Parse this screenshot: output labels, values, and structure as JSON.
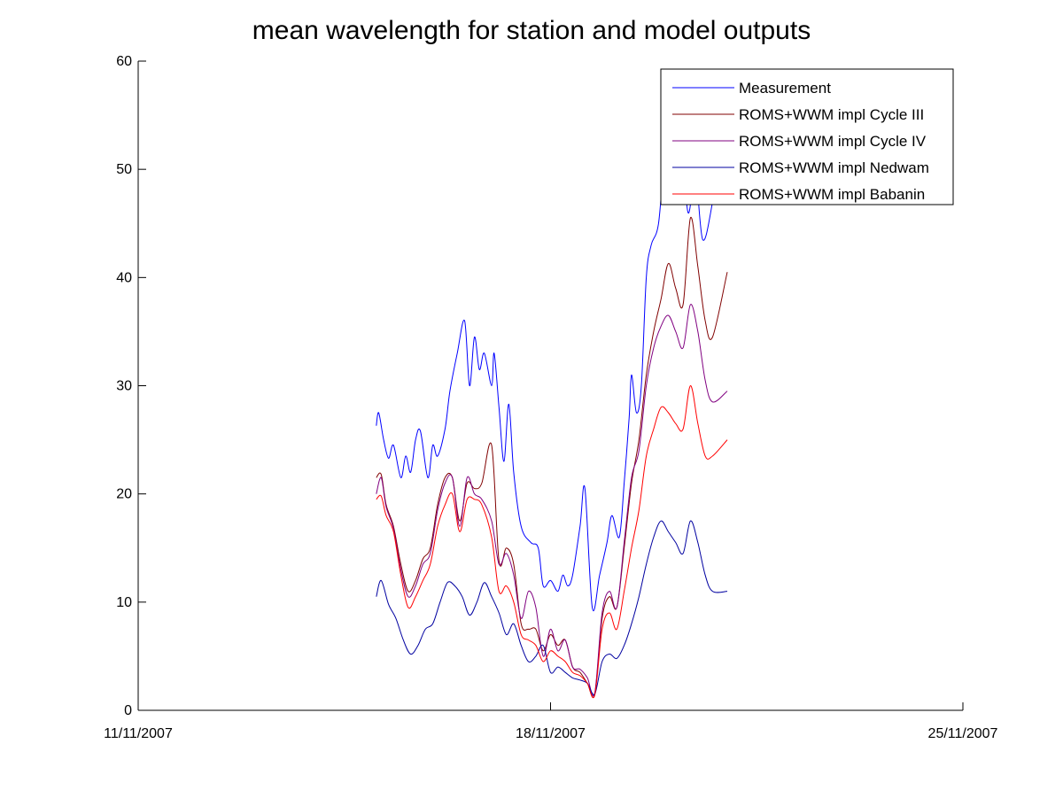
{
  "chart_data": {
    "type": "line",
    "title": "mean wavelength for station and model outputs",
    "xlabel": "",
    "ylabel": "",
    "x_axis": {
      "type": "date",
      "range": [
        "2007-11-11",
        "2007-11-25"
      ],
      "ticks": [
        {
          "date": "2007-11-11",
          "label": "11/11/2007"
        },
        {
          "date": "2007-11-18",
          "label": "18/11/2007"
        },
        {
          "date": "2007-11-25",
          "label": "25/11/2007"
        }
      ]
    },
    "y_axis": {
      "range": [
        0,
        60
      ],
      "ticks": [
        0,
        10,
        20,
        30,
        40,
        50,
        60
      ]
    },
    "grid": false,
    "legend_position": "top-right",
    "series": [
      {
        "name": "Measurement",
        "color": "#0000ff",
        "points": [
          [
            "2007-11-15 01:00",
            26.3
          ],
          [
            "2007-11-15 02:00",
            27.5
          ],
          [
            "2007-11-15 04:00",
            25.0
          ],
          [
            "2007-11-15 06:00",
            23.3
          ],
          [
            "2007-11-15 08:00",
            24.5
          ],
          [
            "2007-11-15 11:00",
            21.5
          ],
          [
            "2007-11-15 13:00",
            23.5
          ],
          [
            "2007-11-15 15:00",
            22.0
          ],
          [
            "2007-11-15 17:00",
            25.0
          ],
          [
            "2007-11-15 19:00",
            25.8
          ],
          [
            "2007-11-15 22:00",
            21.5
          ],
          [
            "2007-11-16 00:00",
            24.5
          ],
          [
            "2007-11-16 02:00",
            23.5
          ],
          [
            "2007-11-16 05:00",
            26.0
          ],
          [
            "2007-11-16 07:00",
            29.5
          ],
          [
            "2007-11-16 10:00",
            33.0
          ],
          [
            "2007-11-16 13:00",
            36.0
          ],
          [
            "2007-11-16 15:00",
            30.0
          ],
          [
            "2007-11-16 17:00",
            34.5
          ],
          [
            "2007-11-16 19:00",
            31.5
          ],
          [
            "2007-11-16 21:00",
            33.0
          ],
          [
            "2007-11-17 00:00",
            30.0
          ],
          [
            "2007-11-17 01:00",
            33.0
          ],
          [
            "2007-11-17 03:00",
            28.0
          ],
          [
            "2007-11-17 05:00",
            23.0
          ],
          [
            "2007-11-17 07:00",
            28.3
          ],
          [
            "2007-11-17 09:00",
            22.0
          ],
          [
            "2007-11-17 12:00",
            17.0
          ],
          [
            "2007-11-17 16:00",
            15.5
          ],
          [
            "2007-11-17 19:00",
            15.0
          ],
          [
            "2007-11-17 21:00",
            11.5
          ],
          [
            "2007-11-18 00:00",
            12.0
          ],
          [
            "2007-11-18 03:00",
            11.0
          ],
          [
            "2007-11-18 05:00",
            12.5
          ],
          [
            "2007-11-18 07:00",
            11.5
          ],
          [
            "2007-11-18 09:00",
            12.5
          ],
          [
            "2007-11-18 12:00",
            17.0
          ],
          [
            "2007-11-18 14:00",
            20.5
          ],
          [
            "2007-11-18 17:00",
            9.5
          ],
          [
            "2007-11-18 20:00",
            12.5
          ],
          [
            "2007-11-18 23:00",
            15.5
          ],
          [
            "2007-11-19 01:00",
            18.0
          ],
          [
            "2007-11-19 04:00",
            16.0
          ],
          [
            "2007-11-19 06:00",
            21.0
          ],
          [
            "2007-11-19 08:00",
            27.0
          ],
          [
            "2007-11-19 09:00",
            31.0
          ],
          [
            "2007-11-19 11:00",
            27.5
          ],
          [
            "2007-11-19 13:00",
            30.0
          ],
          [
            "2007-11-19 15:00",
            40.0
          ],
          [
            "2007-11-19 17:00",
            43.0
          ],
          [
            "2007-11-19 20:00",
            45.0
          ],
          [
            "2007-11-19 23:00",
            52.0
          ],
          [
            "2007-11-20 02:00",
            49.0
          ],
          [
            "2007-11-20 05:00",
            53.0
          ],
          [
            "2007-11-20 08:00",
            46.0
          ],
          [
            "2007-11-20 11:00",
            49.5
          ],
          [
            "2007-11-20 14:00",
            43.5
          ],
          [
            "2007-11-20 18:00",
            47.0
          ],
          [
            "2007-11-21 00:00",
            56.0
          ]
        ]
      },
      {
        "name": "ROMS+WWM impl Cycle III",
        "color": "#800000",
        "points": [
          [
            "2007-11-15 01:00",
            21.5
          ],
          [
            "2007-11-15 03:00",
            21.8
          ],
          [
            "2007-11-15 05:00",
            19.0
          ],
          [
            "2007-11-15 08:00",
            17.0
          ],
          [
            "2007-11-15 11:00",
            13.5
          ],
          [
            "2007-11-15 14:00",
            11.0
          ],
          [
            "2007-11-15 17:00",
            12.0
          ],
          [
            "2007-11-15 20:00",
            14.0
          ],
          [
            "2007-11-15 23:00",
            15.0
          ],
          [
            "2007-11-16 02:00",
            19.0
          ],
          [
            "2007-11-16 05:00",
            21.5
          ],
          [
            "2007-11-16 08:00",
            21.5
          ],
          [
            "2007-11-16 11:00",
            17.5
          ],
          [
            "2007-11-16 14:00",
            21.0
          ],
          [
            "2007-11-16 17:00",
            20.5
          ],
          [
            "2007-11-16 20:00",
            21.0
          ],
          [
            "2007-11-17 00:00",
            24.5
          ],
          [
            "2007-11-17 03:00",
            13.8
          ],
          [
            "2007-11-17 06:00",
            15.0
          ],
          [
            "2007-11-17 09:00",
            13.5
          ],
          [
            "2007-11-17 12:00",
            8.0
          ],
          [
            "2007-11-17 15:00",
            7.5
          ],
          [
            "2007-11-17 18:00",
            7.5
          ],
          [
            "2007-11-17 21:00",
            5.5
          ],
          [
            "2007-11-18 00:00",
            7.0
          ],
          [
            "2007-11-18 03:00",
            6.0
          ],
          [
            "2007-11-18 06:00",
            6.5
          ],
          [
            "2007-11-18 09:00",
            4.0
          ],
          [
            "2007-11-18 12:00",
            3.5
          ],
          [
            "2007-11-18 15:00",
            2.5
          ],
          [
            "2007-11-18 18:00",
            1.5
          ],
          [
            "2007-11-18 21:00",
            8.5
          ],
          [
            "2007-11-19 00:00",
            10.5
          ],
          [
            "2007-11-19 03:00",
            9.5
          ],
          [
            "2007-11-19 06:00",
            15.0
          ],
          [
            "2007-11-19 09:00",
            21.0
          ],
          [
            "2007-11-19 12:00",
            25.0
          ],
          [
            "2007-11-19 15:00",
            31.0
          ],
          [
            "2007-11-19 18:00",
            35.0
          ],
          [
            "2007-11-19 21:00",
            38.0
          ],
          [
            "2007-11-20 00:00",
            41.3
          ],
          [
            "2007-11-20 03:00",
            39.0
          ],
          [
            "2007-11-20 06:00",
            37.5
          ],
          [
            "2007-11-20 09:00",
            45.5
          ],
          [
            "2007-11-20 12:00",
            41.0
          ],
          [
            "2007-11-20 15:00",
            36.0
          ],
          [
            "2007-11-20 18:00",
            34.5
          ],
          [
            "2007-11-21 00:00",
            40.5
          ]
        ]
      },
      {
        "name": "ROMS+WWM impl Cycle IV",
        "color": "#800080",
        "points": [
          [
            "2007-11-15 01:00",
            20.0
          ],
          [
            "2007-11-15 03:00",
            21.5
          ],
          [
            "2007-11-15 05:00",
            18.8
          ],
          [
            "2007-11-15 08:00",
            16.8
          ],
          [
            "2007-11-15 11:00",
            13.0
          ],
          [
            "2007-11-15 14:00",
            10.5
          ],
          [
            "2007-11-15 17:00",
            11.5
          ],
          [
            "2007-11-15 20:00",
            13.5
          ],
          [
            "2007-11-15 23:00",
            14.5
          ],
          [
            "2007-11-16 02:00",
            18.5
          ],
          [
            "2007-11-16 05:00",
            21.0
          ],
          [
            "2007-11-16 08:00",
            21.5
          ],
          [
            "2007-11-16 11:00",
            17.0
          ],
          [
            "2007-11-16 14:00",
            21.5
          ],
          [
            "2007-11-16 17:00",
            20.0
          ],
          [
            "2007-11-16 20:00",
            19.5
          ],
          [
            "2007-11-17 00:00",
            17.5
          ],
          [
            "2007-11-17 03:00",
            13.5
          ],
          [
            "2007-11-17 06:00",
            14.5
          ],
          [
            "2007-11-17 09:00",
            12.5
          ],
          [
            "2007-11-17 12:00",
            8.5
          ],
          [
            "2007-11-17 15:00",
            11.0
          ],
          [
            "2007-11-17 18:00",
            9.5
          ],
          [
            "2007-11-17 21:00",
            5.0
          ],
          [
            "2007-11-18 00:00",
            7.5
          ],
          [
            "2007-11-18 03:00",
            5.5
          ],
          [
            "2007-11-18 06:00",
            6.5
          ],
          [
            "2007-11-18 09:00",
            4.0
          ],
          [
            "2007-11-18 12:00",
            3.8
          ],
          [
            "2007-11-18 15:00",
            3.0
          ],
          [
            "2007-11-18 18:00",
            1.6
          ],
          [
            "2007-11-18 21:00",
            9.0
          ],
          [
            "2007-11-19 00:00",
            11.0
          ],
          [
            "2007-11-19 03:00",
            9.5
          ],
          [
            "2007-11-19 06:00",
            15.5
          ],
          [
            "2007-11-19 09:00",
            21.5
          ],
          [
            "2007-11-19 12:00",
            24.0
          ],
          [
            "2007-11-19 15:00",
            30.0
          ],
          [
            "2007-11-19 18:00",
            33.5
          ],
          [
            "2007-11-19 21:00",
            35.5
          ],
          [
            "2007-11-20 00:00",
            36.5
          ],
          [
            "2007-11-20 03:00",
            35.0
          ],
          [
            "2007-11-20 06:00",
            33.5
          ],
          [
            "2007-11-20 09:00",
            37.5
          ],
          [
            "2007-11-20 12:00",
            35.0
          ],
          [
            "2007-11-20 15:00",
            30.5
          ],
          [
            "2007-11-20 18:00",
            28.5
          ],
          [
            "2007-11-21 00:00",
            29.5
          ]
        ]
      },
      {
        "name": "ROMS+WWM impl Nedwam",
        "color": "#0000a0",
        "points": [
          [
            "2007-11-15 01:00",
            10.5
          ],
          [
            "2007-11-15 03:00",
            12.0
          ],
          [
            "2007-11-15 06:00",
            9.8
          ],
          [
            "2007-11-15 09:00",
            8.5
          ],
          [
            "2007-11-15 12:00",
            6.5
          ],
          [
            "2007-11-15 15:00",
            5.2
          ],
          [
            "2007-11-15 18:00",
            6.0
          ],
          [
            "2007-11-15 21:00",
            7.5
          ],
          [
            "2007-11-16 00:00",
            8.0
          ],
          [
            "2007-11-16 03:00",
            10.0
          ],
          [
            "2007-11-16 06:00",
            11.8
          ],
          [
            "2007-11-16 09:00",
            11.5
          ],
          [
            "2007-11-16 12:00",
            10.5
          ],
          [
            "2007-11-16 15:00",
            8.8
          ],
          [
            "2007-11-16 18:00",
            10.0
          ],
          [
            "2007-11-16 21:00",
            11.8
          ],
          [
            "2007-11-17 00:00",
            10.5
          ],
          [
            "2007-11-17 03:00",
            9.0
          ],
          [
            "2007-11-17 06:00",
            7.0
          ],
          [
            "2007-11-17 09:00",
            8.0
          ],
          [
            "2007-11-17 12:00",
            6.0
          ],
          [
            "2007-11-17 15:00",
            4.5
          ],
          [
            "2007-11-17 18:00",
            5.0
          ],
          [
            "2007-11-17 21:00",
            6.0
          ],
          [
            "2007-11-18 00:00",
            3.5
          ],
          [
            "2007-11-18 03:00",
            4.0
          ],
          [
            "2007-11-18 06:00",
            3.5
          ],
          [
            "2007-11-18 09:00",
            3.0
          ],
          [
            "2007-11-18 12:00",
            2.8
          ],
          [
            "2007-11-18 15:00",
            2.5
          ],
          [
            "2007-11-18 18:00",
            1.5
          ],
          [
            "2007-11-18 21:00",
            4.5
          ],
          [
            "2007-11-19 00:00",
            5.2
          ],
          [
            "2007-11-19 03:00",
            4.8
          ],
          [
            "2007-11-19 06:00",
            6.0
          ],
          [
            "2007-11-19 09:00",
            8.0
          ],
          [
            "2007-11-19 12:00",
            10.5
          ],
          [
            "2007-11-19 15:00",
            13.5
          ],
          [
            "2007-11-19 18:00",
            16.0
          ],
          [
            "2007-11-19 21:00",
            17.5
          ],
          [
            "2007-11-20 00:00",
            16.5
          ],
          [
            "2007-11-20 03:00",
            15.5
          ],
          [
            "2007-11-20 06:00",
            14.5
          ],
          [
            "2007-11-20 09:00",
            17.5
          ],
          [
            "2007-11-20 12:00",
            15.5
          ],
          [
            "2007-11-20 15:00",
            12.5
          ],
          [
            "2007-11-20 18:00",
            11.0
          ],
          [
            "2007-11-21 00:00",
            11.0
          ]
        ]
      },
      {
        "name": "ROMS+WWM impl Babanin",
        "color": "#ff0000",
        "points": [
          [
            "2007-11-15 01:00",
            19.5
          ],
          [
            "2007-11-15 03:00",
            19.8
          ],
          [
            "2007-11-15 05:00",
            18.0
          ],
          [
            "2007-11-15 08:00",
            16.5
          ],
          [
            "2007-11-15 11:00",
            12.5
          ],
          [
            "2007-11-15 14:00",
            9.5
          ],
          [
            "2007-11-15 17:00",
            10.5
          ],
          [
            "2007-11-15 20:00",
            12.0
          ],
          [
            "2007-11-15 23:00",
            13.5
          ],
          [
            "2007-11-16 02:00",
            17.0
          ],
          [
            "2007-11-16 05:00",
            19.0
          ],
          [
            "2007-11-16 08:00",
            20.0
          ],
          [
            "2007-11-16 11:00",
            16.5
          ],
          [
            "2007-11-16 14:00",
            19.5
          ],
          [
            "2007-11-16 17:00",
            19.5
          ],
          [
            "2007-11-16 20:00",
            19.0
          ],
          [
            "2007-11-17 00:00",
            16.0
          ],
          [
            "2007-11-17 03:00",
            11.0
          ],
          [
            "2007-11-17 06:00",
            11.5
          ],
          [
            "2007-11-17 09:00",
            10.0
          ],
          [
            "2007-11-17 12:00",
            7.0
          ],
          [
            "2007-11-17 15:00",
            6.5
          ],
          [
            "2007-11-17 18:00",
            6.0
          ],
          [
            "2007-11-17 21:00",
            4.5
          ],
          [
            "2007-11-18 00:00",
            5.5
          ],
          [
            "2007-11-18 03:00",
            5.0
          ],
          [
            "2007-11-18 06:00",
            4.5
          ],
          [
            "2007-11-18 09:00",
            3.5
          ],
          [
            "2007-11-18 12:00",
            3.2
          ],
          [
            "2007-11-18 15:00",
            2.5
          ],
          [
            "2007-11-18 18:00",
            1.4
          ],
          [
            "2007-11-18 21:00",
            7.5
          ],
          [
            "2007-11-19 00:00",
            9.0
          ],
          [
            "2007-11-19 03:00",
            7.5
          ],
          [
            "2007-11-19 06:00",
            11.0
          ],
          [
            "2007-11-19 09:00",
            15.0
          ],
          [
            "2007-11-19 12:00",
            18.5
          ],
          [
            "2007-11-19 15:00",
            23.5
          ],
          [
            "2007-11-19 18:00",
            26.0
          ],
          [
            "2007-11-19 21:00",
            28.0
          ],
          [
            "2007-11-20 00:00",
            27.5
          ],
          [
            "2007-11-20 03:00",
            26.5
          ],
          [
            "2007-11-20 06:00",
            26.0
          ],
          [
            "2007-11-20 09:00",
            30.0
          ],
          [
            "2007-11-20 12:00",
            26.5
          ],
          [
            "2007-11-20 15:00",
            23.5
          ],
          [
            "2007-11-20 18:00",
            23.5
          ],
          [
            "2007-11-21 00:00",
            25.0
          ]
        ]
      }
    ]
  }
}
